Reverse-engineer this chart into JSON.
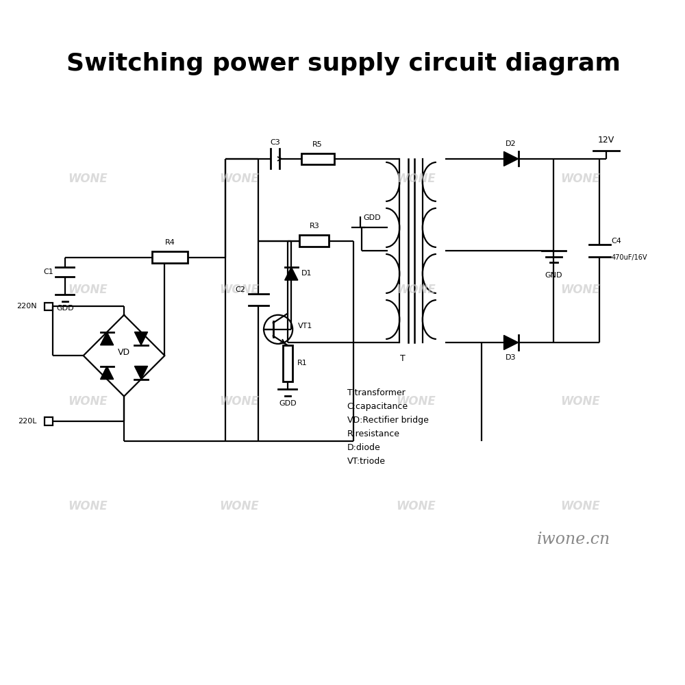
{
  "title": "Switching power supply circuit diagram",
  "title_fontsize": 26,
  "background_color": "#ffffff",
  "line_color": "#000000",
  "watermark_text": "WONE",
  "watermark_color": "#cccccc",
  "brand_text": "iwone.cn",
  "legend_text": "T:transformer\nC:capacitance\nVD:Rectifier bridge\nR:resistance\nD:diode\nVT:triode",
  "lw": 1.6,
  "comp_lw": 2.0
}
